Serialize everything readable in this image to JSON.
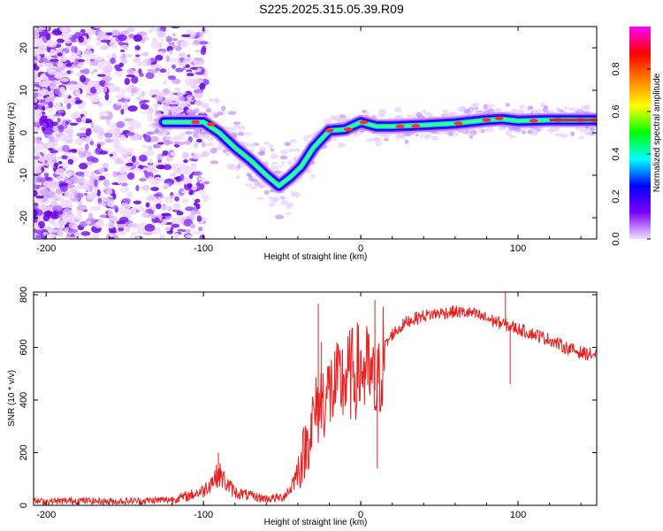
{
  "figure": {
    "title": "S225.2025.315.05.39.R09"
  },
  "chart_data": [
    {
      "type": "heatmap",
      "name": "spectrogram",
      "title": "S225.2025.315.05.39.R09",
      "xlabel": "Height of straight line (km)",
      "ylabel": "Frequency (Hz)",
      "xlim": [
        -208,
        150
      ],
      "ylim": [
        -25,
        25
      ],
      "xticks": [
        -200,
        -100,
        0,
        100
      ],
      "yticks": [
        -20,
        -10,
        0,
        10,
        20
      ],
      "colorbar": {
        "label": "Normalized spectral amplitude",
        "range": [
          0,
          1
        ],
        "ticks": [
          "0.0",
          "0.2",
          "0.4",
          "0.6",
          "0.8"
        ],
        "colormap": [
          "#f0e0ff",
          "#7b00ff",
          "#0000ff",
          "#00ffff",
          "#00ff00",
          "#ffff00",
          "#ff8000",
          "#ff0000",
          "#ff00ff"
        ]
      },
      "ridge": {
        "description_points": [
          [
            -125,
            2.5
          ],
          [
            -110,
            2.5
          ],
          [
            -100,
            2.5
          ],
          [
            -90,
            0.0
          ],
          [
            -80,
            -3.5
          ],
          [
            -70,
            -6.5
          ],
          [
            -60,
            -10.0
          ],
          [
            -52,
            -12.5
          ],
          [
            -45,
            -10.5
          ],
          [
            -38,
            -8.0
          ],
          [
            -30,
            -3.5
          ],
          [
            -20,
            0.5
          ],
          [
            -10,
            0.8
          ],
          [
            0,
            2.5
          ],
          [
            10,
            1.5
          ],
          [
            20,
            1.5
          ],
          [
            40,
            1.8
          ],
          [
            60,
            2.2
          ],
          [
            80,
            3.0
          ],
          [
            90,
            3.2
          ],
          [
            100,
            2.8
          ],
          [
            120,
            3.0
          ],
          [
            150,
            3.0
          ]
        ]
      }
    },
    {
      "type": "line",
      "name": "snr",
      "xlabel": "Height of straight line (km)",
      "ylabel": "SNR (10 * v/v)",
      "xlim": [
        -208,
        150
      ],
      "ylim": [
        0,
        810
      ],
      "xticks": [
        -200,
        -100,
        0,
        100
      ],
      "yticks": [
        0,
        200,
        400,
        600,
        800
      ],
      "color": "#e82020",
      "series": [
        {
          "name": "SNR",
          "x": [
            -208,
            -200,
            -190,
            -180,
            -170,
            -160,
            -150,
            -140,
            -130,
            -120,
            -110,
            -100,
            -95,
            -90,
            -85,
            -80,
            -70,
            -60,
            -50,
            -45,
            -40,
            -35,
            -30,
            -25,
            -20,
            -15,
            -10,
            -5,
            0,
            5,
            10,
            15,
            20,
            30,
            40,
            50,
            60,
            70,
            80,
            90,
            100,
            110,
            120,
            130,
            140,
            150
          ],
          "values": [
            15,
            15,
            16,
            18,
            16,
            15,
            16,
            17,
            19,
            22,
            35,
            55,
            90,
            120,
            80,
            50,
            35,
            25,
            30,
            60,
            130,
            220,
            330,
            400,
            430,
            450,
            480,
            500,
            520,
            500,
            420,
            600,
            650,
            700,
            720,
            730,
            735,
            730,
            710,
            690,
            670,
            650,
            630,
            600,
            580,
            570
          ]
        }
      ],
      "spikes": [
        {
          "x": -90.5,
          "y": 200
        },
        {
          "x": -27,
          "y": 765
        },
        {
          "x": -25,
          "y": 620
        },
        {
          "x": 9,
          "y": 780
        },
        {
          "x": 10.5,
          "y": 140
        },
        {
          "x": 92,
          "y": 810
        },
        {
          "x": 95,
          "y": 460
        }
      ]
    }
  ]
}
